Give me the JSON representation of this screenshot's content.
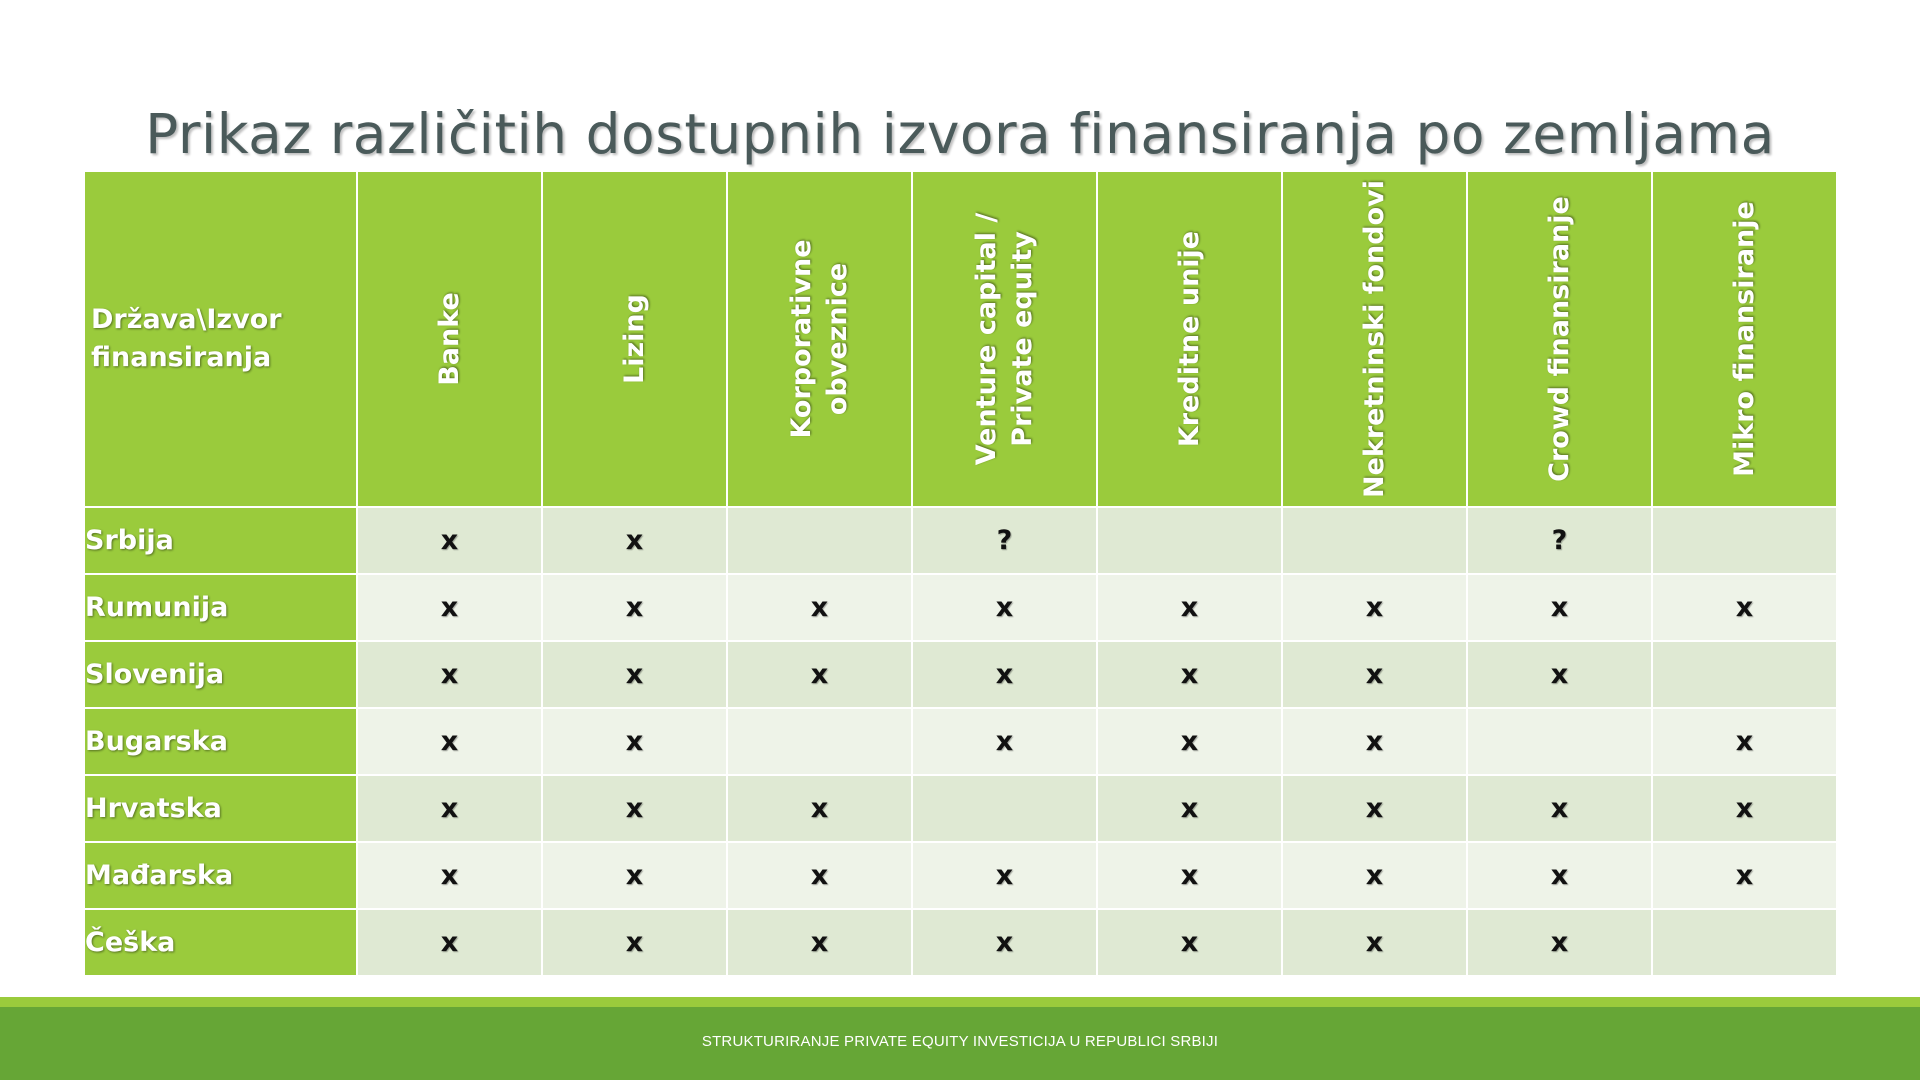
{
  "title": "Prikaz različitih dostupnih izvora finansiranja po zemljama",
  "table": {
    "corner": "Država\\Izvor finansiranja",
    "columns": [
      "Banke",
      "Lizing",
      "Korporativne obveznice",
      "Venture capital / Private equity",
      "Kreditne unije",
      "Nekretninski fondovi",
      "Crowd finansiranje",
      "Mikro finansiranje"
    ],
    "rows": [
      {
        "country": "Srbija",
        "cells": [
          "x",
          "x",
          "",
          "?",
          "",
          "",
          "?",
          ""
        ]
      },
      {
        "country": "Rumunija",
        "cells": [
          "x",
          "x",
          "x",
          "x",
          "x",
          "x",
          "x",
          "x"
        ]
      },
      {
        "country": "Slovenija",
        "cells": [
          "x",
          "x",
          "x",
          "x",
          "x",
          "x",
          "x",
          ""
        ]
      },
      {
        "country": "Bugarska",
        "cells": [
          "x",
          "x",
          "",
          "x",
          "x",
          "x",
          "",
          "x"
        ]
      },
      {
        "country": "Hrvatska",
        "cells": [
          "x",
          "x",
          "x",
          "",
          "x",
          "x",
          "x",
          "x"
        ]
      },
      {
        "country": "Mađarska",
        "cells": [
          "x",
          "x",
          "x",
          "x",
          "x",
          "x",
          "x",
          "x"
        ]
      },
      {
        "country": "Češka",
        "cells": [
          "x",
          "x",
          "x",
          "x",
          "x",
          "x",
          "x",
          ""
        ]
      }
    ]
  },
  "footer": "STRUKTURIRANJE PRIVATE EQUITY INVESTICIJA U REPUBLICI SRBIJI",
  "colors": {
    "header_green": "#9acb3c",
    "footer_green": "#66a636",
    "row_light": "#eef3e8",
    "row_dark": "#dfe9d3"
  }
}
